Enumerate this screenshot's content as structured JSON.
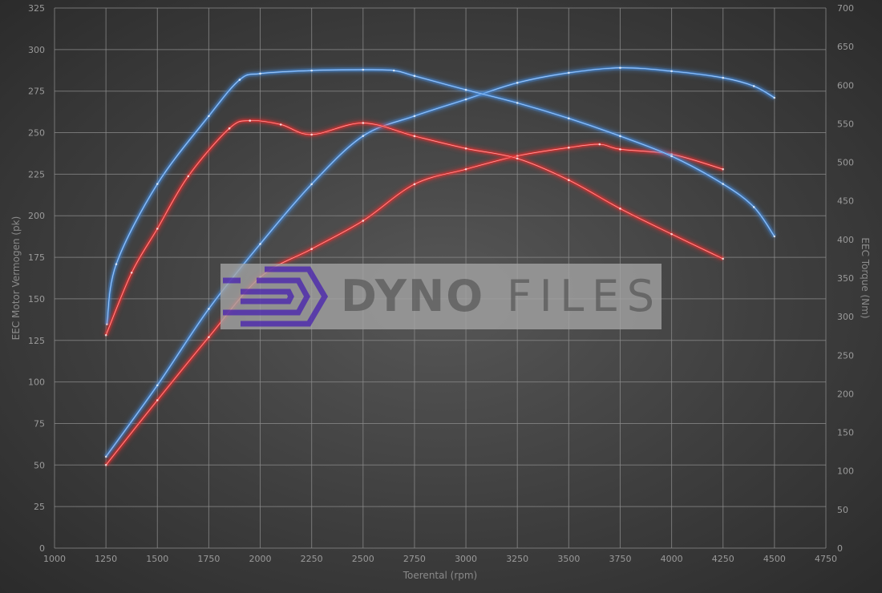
{
  "chart_data": {
    "type": "line",
    "title": "",
    "xlabel": "Toerental (rpm)",
    "ylabel_left": "EEC Motor Vermogen (pk)",
    "ylabel_right": "EEC Torque (Nm)",
    "xlim": [
      1000,
      4750
    ],
    "ylim_left": [
      0,
      325
    ],
    "ylim_right": [
      0,
      700
    ],
    "x_ticks": [
      1000,
      1250,
      1500,
      1750,
      2000,
      2250,
      2500,
      2750,
      3000,
      3250,
      3500,
      3750,
      4000,
      4250,
      4500,
      4750
    ],
    "y_left_ticks": [
      0,
      25,
      50,
      75,
      100,
      125,
      150,
      175,
      200,
      225,
      250,
      275,
      300,
      325
    ],
    "y_right_ticks": [
      0,
      50,
      100,
      150,
      200,
      250,
      300,
      350,
      400,
      450,
      500,
      550,
      600,
      650,
      700
    ],
    "grid": true,
    "series": [
      {
        "axis": "left",
        "color": "#4a8fe0",
        "x": [
          1250,
          1500,
          1750,
          2000,
          2250,
          2500,
          2750,
          3000,
          3250,
          3500,
          3750,
          4000,
          4250,
          4400,
          4500
        ],
        "y": [
          55,
          98,
          144,
          183,
          219,
          248,
          260,
          270,
          280,
          286,
          289,
          287,
          283,
          278,
          271
        ]
      },
      {
        "axis": "left",
        "color": "#e83030",
        "x": [
          1250,
          1500,
          1750,
          2000,
          2250,
          2500,
          2750,
          3000,
          3250,
          3500,
          3650,
          3750,
          4000,
          4250
        ],
        "y": [
          50,
          89,
          127,
          163,
          180,
          197,
          219,
          228,
          236,
          241,
          243,
          240,
          237,
          228
        ]
      },
      {
        "axis": "right",
        "color": "#4a8fe0",
        "x": [
          1255,
          1300,
          1500,
          1750,
          1900,
          2000,
          2250,
          2500,
          2650,
          2750,
          3000,
          3250,
          3500,
          3750,
          4000,
          4250,
          4400,
          4500
        ],
        "y": [
          290,
          368,
          472,
          560,
          607,
          615,
          619,
          620,
          619,
          612,
          594,
          577,
          557,
          534,
          508,
          472,
          442,
          404
        ]
      },
      {
        "axis": "right",
        "color": "#e83030",
        "x": [
          1250,
          1375,
          1500,
          1650,
          1850,
          1950,
          2100,
          2250,
          2500,
          2750,
          3000,
          3250,
          3500,
          3750,
          4000,
          4250
        ],
        "y": [
          276,
          357,
          414,
          482,
          544,
          554,
          549,
          536,
          551,
          534,
          518,
          505,
          477,
          440,
          407,
          375
        ]
      }
    ]
  },
  "watermark": {
    "logo_text": "DYNOFILES",
    "bold_part": "DYNO",
    "light_part": "FILES",
    "logo_color": "#5b3bb0"
  }
}
